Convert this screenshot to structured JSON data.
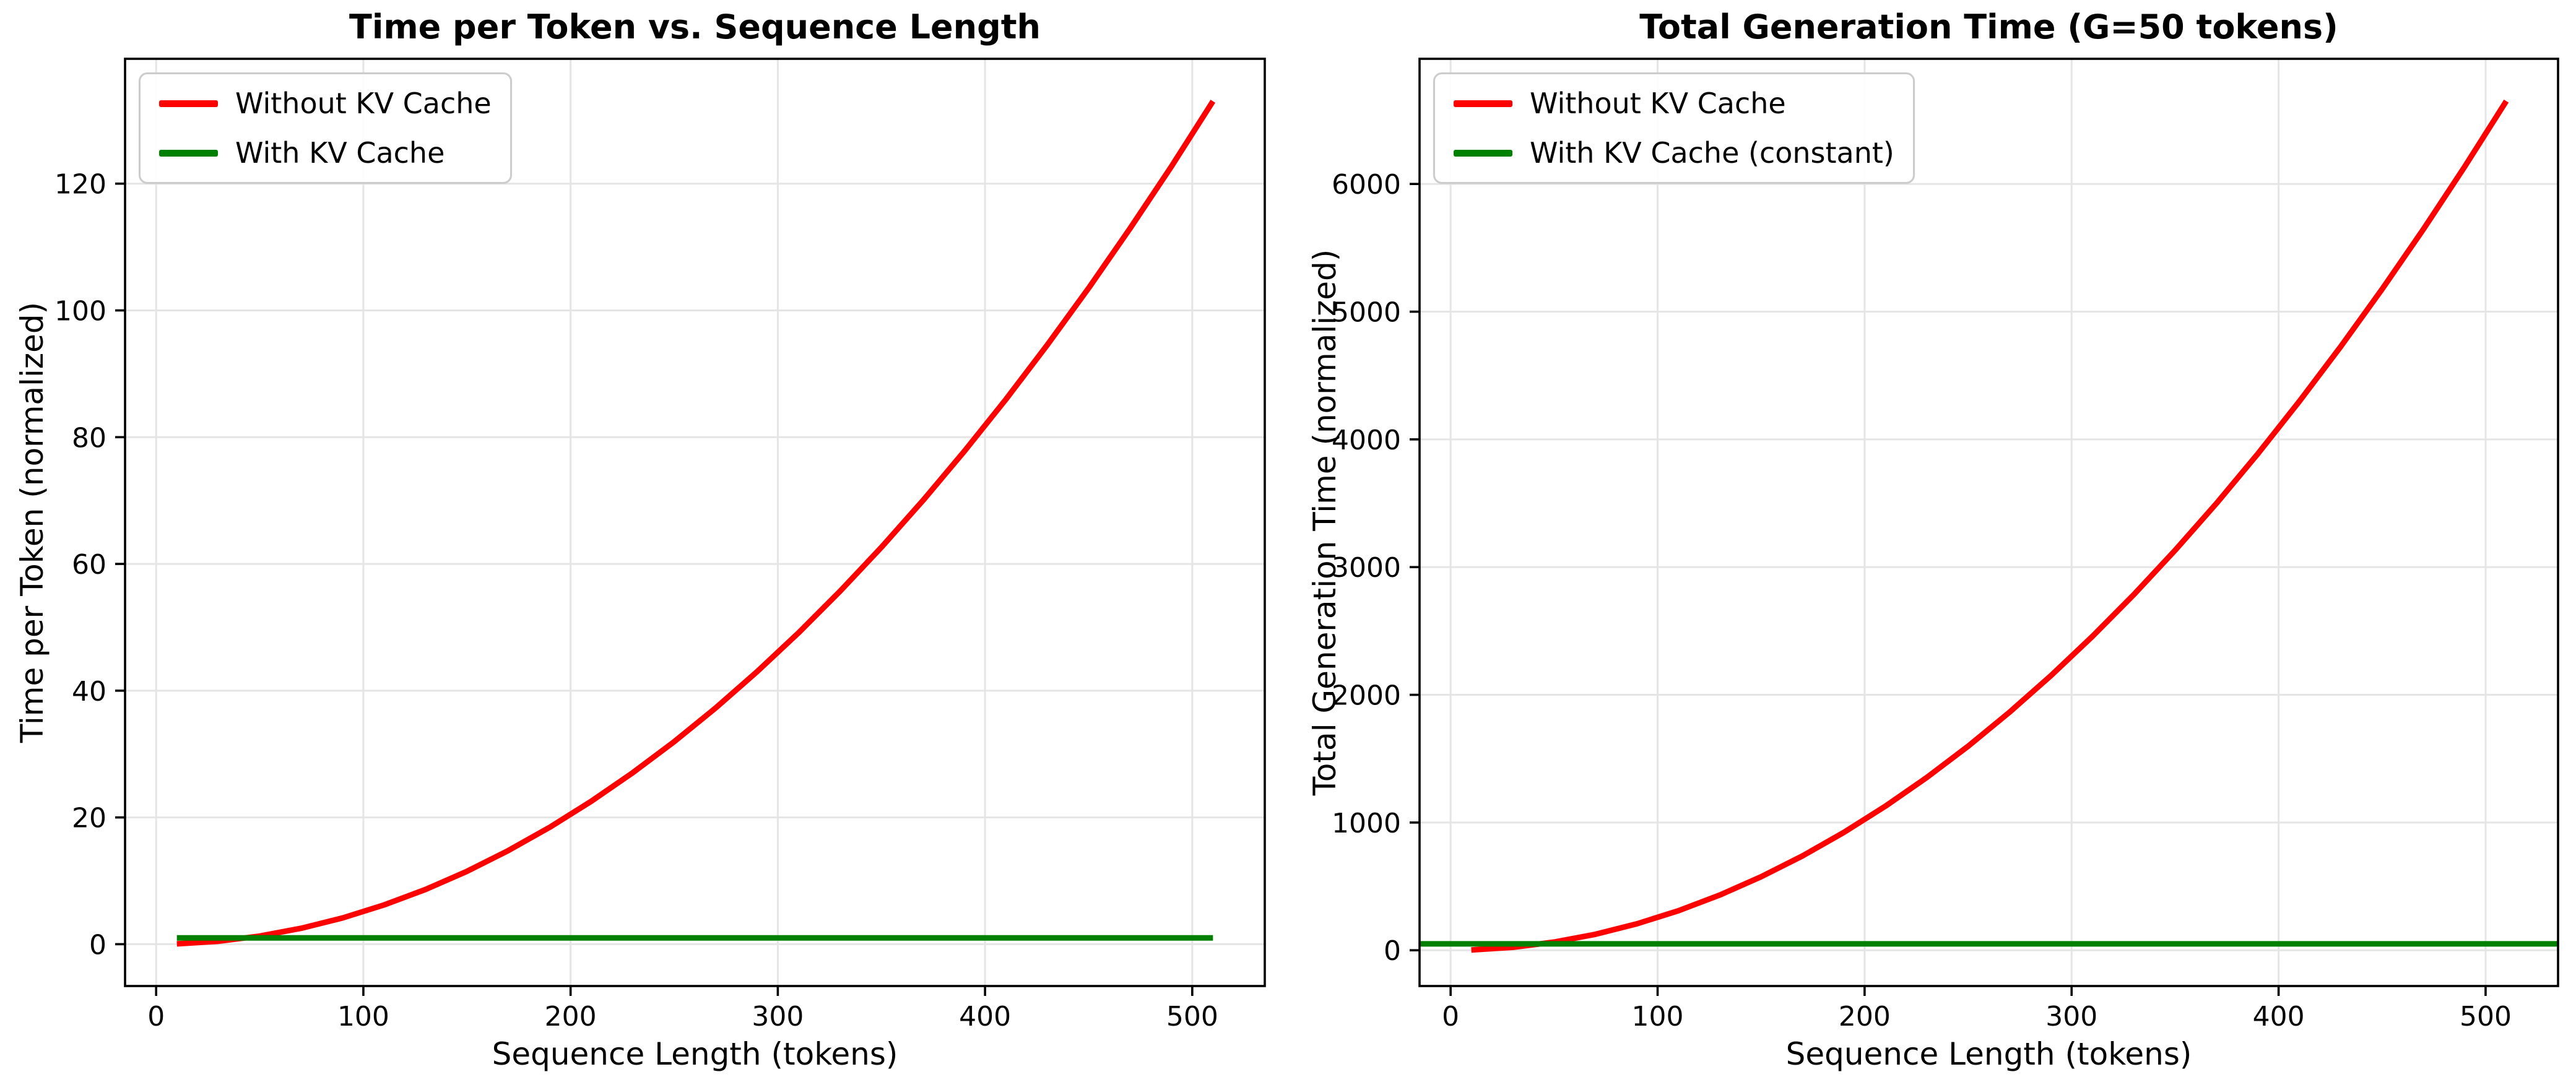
{
  "figure": {
    "background": "#ffffff",
    "text_color": "#000000",
    "grid_color": "#e5e5e5",
    "spine_color": "#000000"
  },
  "chart_data": [
    {
      "type": "line",
      "title": "Time per Token vs. Sequence Length",
      "xlabel": "Sequence Length (tokens)",
      "ylabel": "Time per Token (normalized)",
      "xlim": [
        -15,
        535
      ],
      "ylim": [
        -6.6,
        139.7
      ],
      "xticks": [
        0,
        100,
        200,
        300,
        400,
        500
      ],
      "yticks": [
        0,
        20,
        40,
        60,
        80,
        100,
        120
      ],
      "grid": true,
      "legend_position": "upper-left",
      "series": [
        {
          "name": "Without KV Cache",
          "color": "#ff0000",
          "x": [
            10,
            30,
            50,
            70,
            90,
            110,
            130,
            150,
            170,
            190,
            210,
            230,
            250,
            270,
            290,
            310,
            330,
            350,
            370,
            390,
            410,
            430,
            450,
            470,
            490,
            510
          ],
          "y": [
            0.05,
            0.46,
            1.28,
            2.51,
            4.14,
            6.19,
            8.64,
            11.5,
            14.78,
            18.46,
            22.55,
            27.05,
            31.95,
            37.27,
            43.0,
            49.13,
            55.68,
            62.63,
            69.99,
            77.76,
            85.94,
            94.53,
            103.53,
            112.94,
            122.75,
            133.0
          ]
        },
        {
          "name": "With KV Cache",
          "color": "#008000",
          "x": [
            10,
            510
          ],
          "y": [
            1.0,
            1.0
          ]
        }
      ]
    },
    {
      "type": "line",
      "title": "Total Generation Time (G=50 tokens)",
      "xlabel": "Sequence Length (tokens)",
      "ylabel": "Total Generation Time (normalized)",
      "xlim": [
        -15,
        535
      ],
      "ylim": [
        -280,
        6980
      ],
      "xticks": [
        0,
        100,
        200,
        300,
        400,
        500
      ],
      "yticks": [
        0,
        1000,
        2000,
        3000,
        4000,
        5000,
        6000
      ],
      "grid": true,
      "legend_position": "upper-left",
      "series": [
        {
          "name": "Without KV Cache",
          "color": "#ff0000",
          "x": [
            10,
            30,
            50,
            70,
            90,
            110,
            130,
            150,
            170,
            190,
            210,
            230,
            250,
            270,
            290,
            310,
            330,
            350,
            370,
            390,
            410,
            430,
            450,
            470,
            490,
            510
          ],
          "y": [
            2.6,
            23.0,
            63.9,
            125.3,
            207.0,
            309.3,
            432.0,
            575.2,
            738.8,
            922.8,
            1127.3,
            1352.2,
            1597.6,
            1863.5,
            2149.8,
            2456.6,
            2783.7,
            3131.4,
            3499.5,
            3888.0,
            4297.0,
            4726.5,
            5176.4,
            5646.8,
            6137.6,
            6649.0
          ]
        },
        {
          "name": "With KV Cache (constant)",
          "color": "#008000",
          "x": [
            -15,
            535
          ],
          "y": [
            50,
            50
          ],
          "span_full_width": true
        }
      ]
    }
  ]
}
